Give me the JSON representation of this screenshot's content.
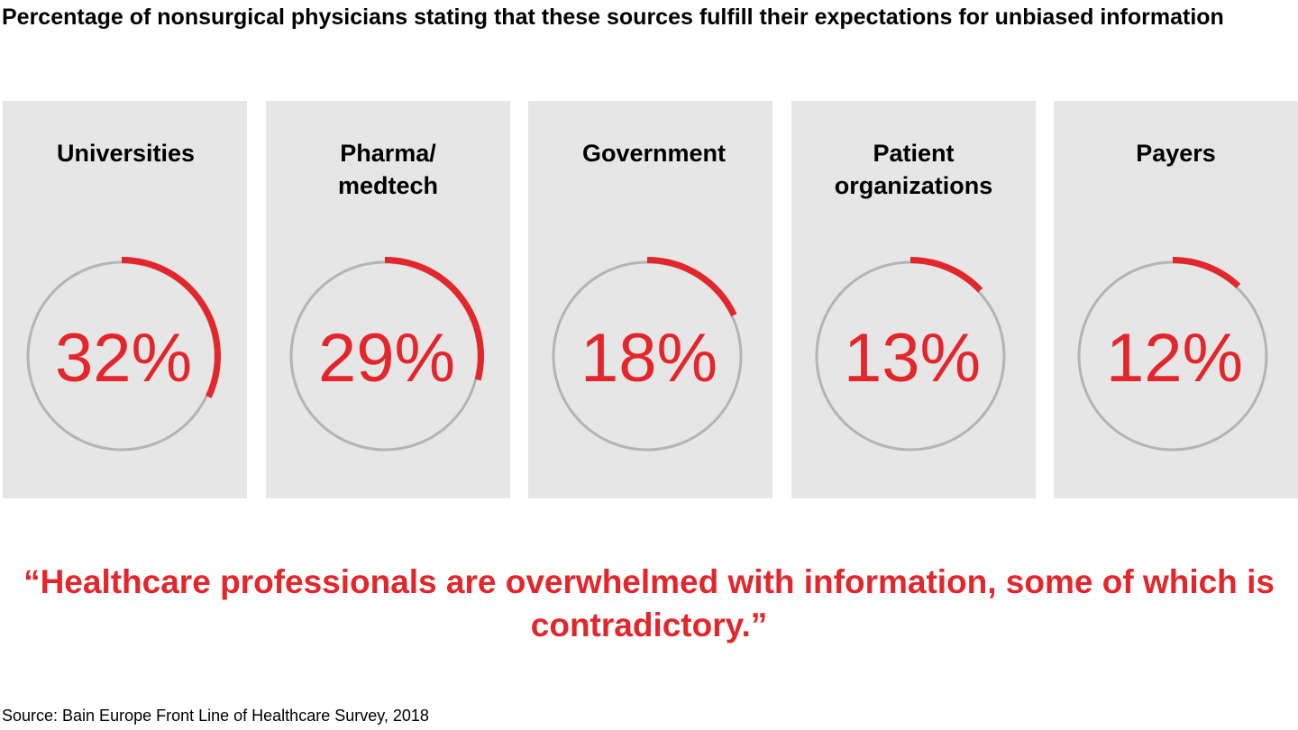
{
  "chart_data": {
    "type": "donut-gauges",
    "title": "Percentage of nonsurgical physicians stating that these sources fulfill their expectations for unbiased information",
    "categories": [
      "Universities",
      "Pharma/ medtech",
      "Government",
      "Patient organizations",
      "Payers"
    ],
    "values": [
      32,
      29,
      18,
      13,
      12
    ],
    "value_labels": [
      "32%",
      "29%",
      "18%",
      "13%",
      "12%"
    ],
    "unit": "%",
    "range": [
      0,
      100
    ],
    "colors": {
      "fill": "#e3262b",
      "track": "#b4b4b4",
      "panel": "#e6e6e6"
    }
  },
  "quote": "“Healthcare professionals are overwhelmed with information, some of which is contradictory.”",
  "source": "Source: Bain Europe Front Line of Healthcare Survey, 2018"
}
